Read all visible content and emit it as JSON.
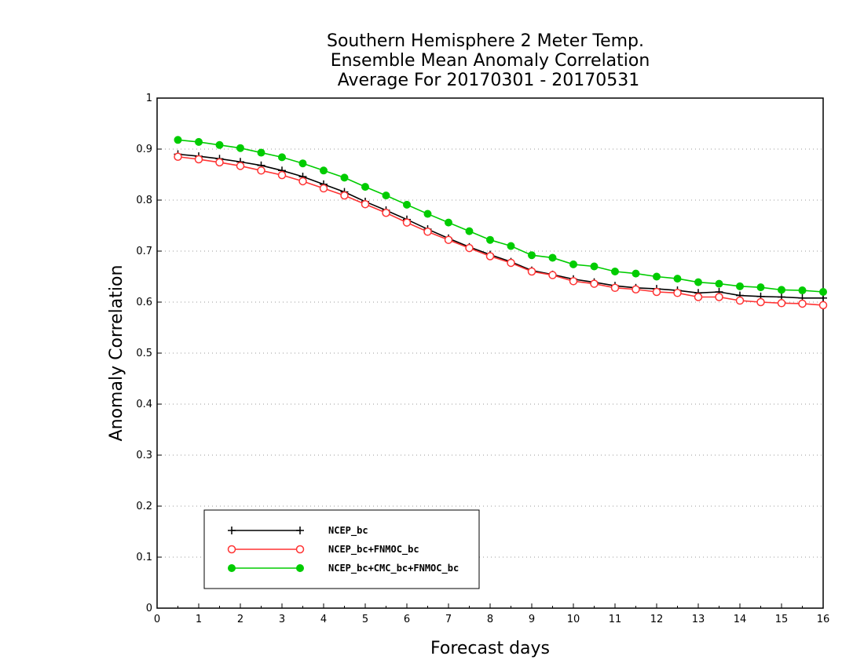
{
  "chart_data": {
    "type": "line",
    "title": [
      "Southern Hemisphere 2 Meter Temp.",
      "Ensemble Mean Anomaly Correlation",
      "Average For 20170301 - 20170531"
    ],
    "xlabel": "Forecast days",
    "ylabel": "Anomaly Correlation",
    "xlim": [
      0,
      16
    ],
    "ylim": [
      0,
      1
    ],
    "xticks": [
      0,
      1,
      2,
      3,
      4,
      5,
      6,
      7,
      8,
      9,
      10,
      11,
      12,
      13,
      14,
      15,
      16
    ],
    "yticks": [
      0,
      0.1,
      0.2,
      0.3,
      0.4,
      0.5,
      0.6,
      0.7,
      0.8,
      0.9,
      1
    ],
    "xtick_labels": [
      "0",
      "1",
      "2",
      "3",
      "4",
      "5",
      "6",
      "7",
      "8",
      "9",
      "10",
      "11",
      "12",
      "13",
      "14",
      "15",
      "16"
    ],
    "ytick_labels": [
      "0",
      "0.1",
      "0.2",
      "0.3",
      "0.4",
      "0.5",
      "0.6",
      "0.7",
      "0.8",
      "0.9",
      "1"
    ],
    "grid": "horizontal-dotted",
    "legend_position": "bottom-left",
    "x": [
      0.5,
      1,
      1.5,
      2,
      2.5,
      3,
      3.5,
      4,
      4.5,
      5,
      5.5,
      6,
      6.5,
      7,
      7.5,
      8,
      8.5,
      9,
      9.5,
      10,
      10.5,
      11,
      11.5,
      12,
      12.5,
      13,
      13.5,
      14,
      14.5,
      15,
      15.5,
      16
    ],
    "series": [
      {
        "name": "NCEP_bc",
        "color": "#000000",
        "marker": "plus",
        "values": [
          0.89,
          0.886,
          0.881,
          0.875,
          0.868,
          0.858,
          0.846,
          0.831,
          0.816,
          0.797,
          0.78,
          0.762,
          0.743,
          0.725,
          0.708,
          0.693,
          0.679,
          0.662,
          0.654,
          0.645,
          0.639,
          0.632,
          0.628,
          0.626,
          0.623,
          0.618,
          0.62,
          0.613,
          0.611,
          0.61,
          0.608,
          0.608
        ]
      },
      {
        "name": "NCEP_bc+FNMOC_bc",
        "color": "#ff3333",
        "marker": "open-circle",
        "values": [
          0.885,
          0.88,
          0.874,
          0.867,
          0.858,
          0.849,
          0.837,
          0.823,
          0.809,
          0.792,
          0.775,
          0.756,
          0.738,
          0.722,
          0.706,
          0.69,
          0.677,
          0.66,
          0.653,
          0.641,
          0.636,
          0.628,
          0.625,
          0.62,
          0.618,
          0.61,
          0.61,
          0.603,
          0.6,
          0.598,
          0.597,
          0.594
        ]
      },
      {
        "name": "NCEP_bc+CMC_bc+FNMOC_bc",
        "color": "#00cc00",
        "marker": "filled-circle",
        "values": [
          0.918,
          0.914,
          0.908,
          0.902,
          0.893,
          0.884,
          0.872,
          0.858,
          0.844,
          0.826,
          0.809,
          0.791,
          0.773,
          0.756,
          0.739,
          0.722,
          0.71,
          0.692,
          0.687,
          0.674,
          0.67,
          0.66,
          0.656,
          0.65,
          0.646,
          0.639,
          0.636,
          0.631,
          0.629,
          0.624,
          0.623,
          0.62
        ]
      }
    ]
  }
}
